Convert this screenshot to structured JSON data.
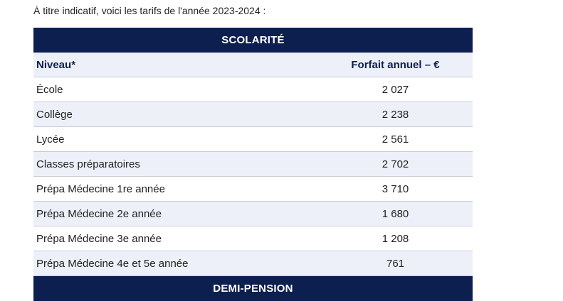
{
  "intro": "À titre indicatif, voici les tarifs de l'année 2023-2024 :",
  "scolarite": {
    "title": "SCOLARITÉ",
    "headers": {
      "niveau": "Niveau*",
      "forfait": "Forfait annuel – €"
    },
    "rows": [
      {
        "niveau": "École",
        "forfait": "2 027"
      },
      {
        "niveau": "Collège",
        "forfait": "2 238"
      },
      {
        "niveau": "Lycée",
        "forfait": "2 561"
      },
      {
        "niveau": "Classes préparatoires",
        "forfait": "2 702"
      },
      {
        "niveau": "Prépa Médecine 1re année",
        "forfait": "3 710"
      },
      {
        "niveau": "Prépa Médecine 2e année",
        "forfait": "1 680"
      },
      {
        "niveau": "Prépa Médecine 3e année",
        "forfait": "1 208"
      },
      {
        "niveau": "Prépa Médecine 4e et 5e année",
        "forfait": "761"
      }
    ]
  },
  "demi_pension": {
    "title": "DEMI-PENSION"
  },
  "colors": {
    "header_bg": "#0c1f4e",
    "alt_row_bg": "#eef0f9"
  }
}
